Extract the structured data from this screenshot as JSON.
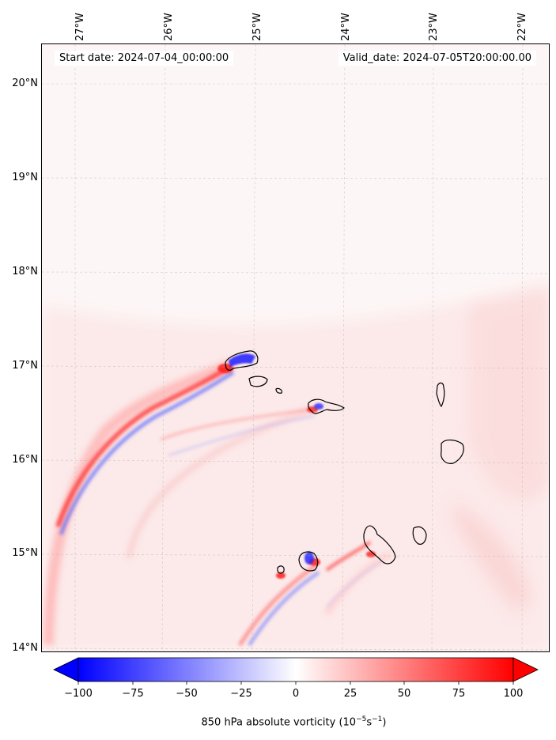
{
  "map": {
    "start_date": "Start date: 2024-07-04_00:00:00",
    "valid_date": "Valid_date: 2024-07-05T20:00:00.00",
    "lon_labels": [
      "27°W",
      "26°W",
      "25°W",
      "24°W",
      "23°W",
      "22°W"
    ],
    "lat_labels": [
      "20°N",
      "19°N",
      "18°N",
      "17°N",
      "16°N",
      "15°N",
      "14°N"
    ],
    "colormap": "bwr",
    "colors": {
      "negative": "#0000ff",
      "neutral": "#ffffff",
      "positive": "#ff0000",
      "background_tint": "#fdeeee"
    }
  },
  "colorbar": {
    "label_prefix": "850 hPa absolute vorticity (10",
    "label_exp1": "−5",
    "label_mid": "s",
    "label_exp2": "−1",
    "label_suffix": ")",
    "ticks": [
      "−100",
      "−75",
      "−50",
      "−25",
      "0",
      "25",
      "50",
      "75",
      "100"
    ],
    "min": -100,
    "max": 100
  }
}
